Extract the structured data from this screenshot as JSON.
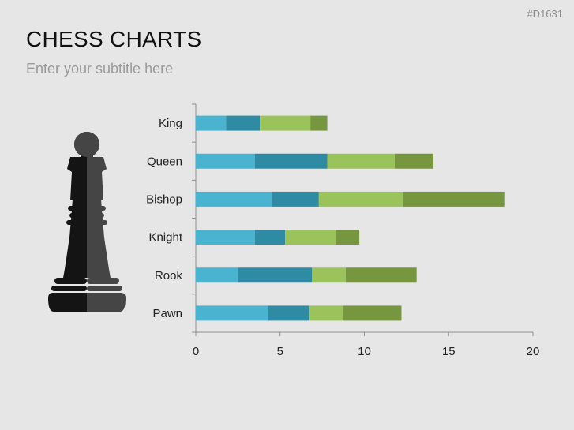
{
  "header": {
    "slide_id": "#D1631",
    "title": "CHESS CHARTS",
    "subtitle": "Enter your subtitle here"
  },
  "illustration": {
    "icon": "chess-king-icon",
    "left_color": "#141414",
    "right_color": "#454545"
  },
  "chart_data": {
    "type": "bar",
    "orientation": "horizontal",
    "stacked": true,
    "categories": [
      "King",
      "Queen",
      "Bishop",
      "Knight",
      "Rook",
      "Pawn"
    ],
    "series": [
      {
        "color": "#4ab3cf",
        "values": [
          1.8,
          3.5,
          4.5,
          3.5,
          2.5,
          4.3
        ]
      },
      {
        "color": "#2f8aa3",
        "values": [
          2.0,
          4.3,
          2.8,
          1.8,
          4.4,
          2.4
        ]
      },
      {
        "color": "#9bc35c",
        "values": [
          3.0,
          4.0,
          5.0,
          3.0,
          2.0,
          2.0
        ]
      },
      {
        "color": "#76963f",
        "values": [
          1.0,
          2.3,
          6.0,
          1.4,
          4.2,
          3.5
        ]
      }
    ],
    "xlim": [
      0,
      20
    ],
    "xticks": [
      "0",
      "5",
      "10",
      "15",
      "20"
    ],
    "grid": false,
    "legend": "none"
  }
}
